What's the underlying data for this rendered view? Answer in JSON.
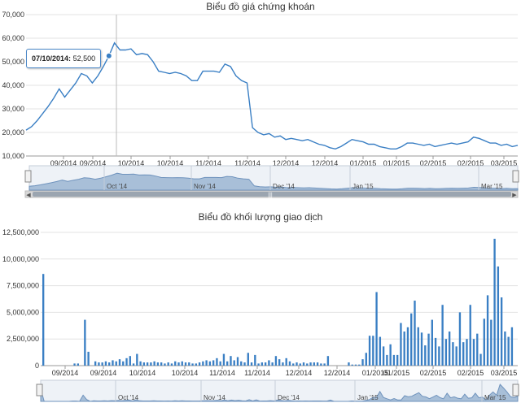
{
  "chart_data": [
    {
      "type": "line",
      "title": "Biểu đồ giá chứng khoán",
      "ylim": [
        10000,
        70000
      ],
      "yticks": [
        10000,
        20000,
        30000,
        40000,
        50000,
        60000,
        70000
      ],
      "ytick_labels": [
        "10,000",
        "20,000",
        "30,000",
        "40,000",
        "50,000",
        "60,000",
        "70,000"
      ],
      "xticks": [
        "09/2014",
        "09/2014",
        "10/2014",
        "10/2014",
        "11/2014",
        "11/2014",
        "12/2014",
        "12/2014",
        "01/2015",
        "01/2015",
        "02/2015",
        "02/2015",
        "03/2015"
      ],
      "grid": true,
      "series": [
        {
          "values": [
            21000,
            22500,
            25000,
            28000,
            31000,
            34500,
            38500,
            35000,
            38000,
            41000,
            45000,
            44000,
            41000,
            44000,
            48000,
            52500,
            58000,
            55000,
            55000,
            55500,
            53000,
            53500,
            53000,
            50000,
            46000,
            45500,
            45000,
            45500,
            45000,
            44000,
            42000,
            42000,
            46000,
            46000,
            46000,
            45500,
            49000,
            48000,
            44000,
            42000,
            41000,
            22000,
            20000,
            19000,
            19500,
            18000,
            18500,
            17000,
            17500,
            17000,
            16500,
            17000,
            16000,
            15000,
            14500,
            13500,
            13000,
            14000,
            15500,
            17000,
            16500,
            16000,
            15000,
            15000,
            14000,
            13500,
            13000,
            13000,
            14000,
            15500,
            15500,
            15000,
            14500,
            15000,
            14000,
            14500,
            15000,
            15500,
            15000,
            15500,
            16000,
            18000,
            17500,
            16500,
            15500,
            15500,
            14500,
            15000,
            14000,
            14500
          ]
        }
      ],
      "tooltip": {
        "date": "07/10/2014:",
        "value": "52,500"
      },
      "navigator": {
        "labels": [
          "Oct '14",
          "Nov '14",
          "Dec '14",
          "Jan '15",
          "Mar '15"
        ]
      }
    },
    {
      "type": "bar",
      "title": "Biểu đồ khối lượng giao dịch",
      "ylim": [
        0,
        12500000
      ],
      "yticks": [
        0,
        2500000,
        5000000,
        7500000,
        10000000,
        12500000
      ],
      "ytick_labels": [
        "0",
        "2,500,000",
        "5,000,000",
        "7,500,000",
        "10,000,000",
        "12,500,000"
      ],
      "xticks": [
        "09/2014",
        "09/2014",
        "10/2014",
        "10/2014",
        "11/2014",
        "11/2014",
        "12/2014",
        "12/2014",
        "01/2015",
        "01/2015",
        "02/2015",
        "02/2015",
        "03/2015"
      ],
      "grid": true,
      "series": [
        {
          "values": [
            8600000,
            0,
            0,
            0,
            0,
            0,
            0,
            0,
            0,
            200000,
            200000,
            0,
            4300000,
            1300000,
            0,
            400000,
            300000,
            300000,
            400000,
            300000,
            500000,
            400000,
            600000,
            400000,
            700000,
            900000,
            200000,
            1100000,
            400000,
            300000,
            300000,
            300000,
            400000,
            300000,
            300000,
            200000,
            300000,
            200000,
            400000,
            300000,
            400000,
            300000,
            300000,
            200000,
            200000,
            300000,
            400000,
            500000,
            400000,
            500000,
            700000,
            400000,
            1100000,
            400000,
            900000,
            500000,
            800000,
            400000,
            300000,
            1200000,
            300000,
            1000000,
            200000,
            300000,
            300000,
            500000,
            300000,
            900000,
            600000,
            300000,
            700000,
            400000,
            200000,
            300000,
            200000,
            300000,
            200000,
            300000,
            300000,
            300000,
            200000,
            200000,
            900000,
            0,
            0,
            0,
            0,
            0,
            300000,
            100000,
            100000,
            100000,
            600000,
            1200000,
            2800000,
            2800000,
            6900000,
            2700000,
            1800000,
            1000000,
            2000000,
            1000000,
            1000000,
            4000000,
            3200000,
            3600000,
            4900000,
            6100000,
            3600000,
            3100000,
            1900000,
            3000000,
            4300000,
            2600000,
            1800000,
            5700000,
            2500000,
            3200000,
            2200000,
            1800000,
            5000000,
            2200000,
            2500000,
            5700000,
            2500000,
            3000000,
            1100000,
            4400000,
            6600000,
            4300000,
            11900000,
            9300000,
            6400000,
            3200000,
            2700000,
            3600000
          ]
        }
      ],
      "navigator": {
        "labels": [
          "Oct '14",
          "Nov '14",
          "Dec '14",
          "Jan '15",
          "Mar '15"
        ]
      }
    }
  ]
}
